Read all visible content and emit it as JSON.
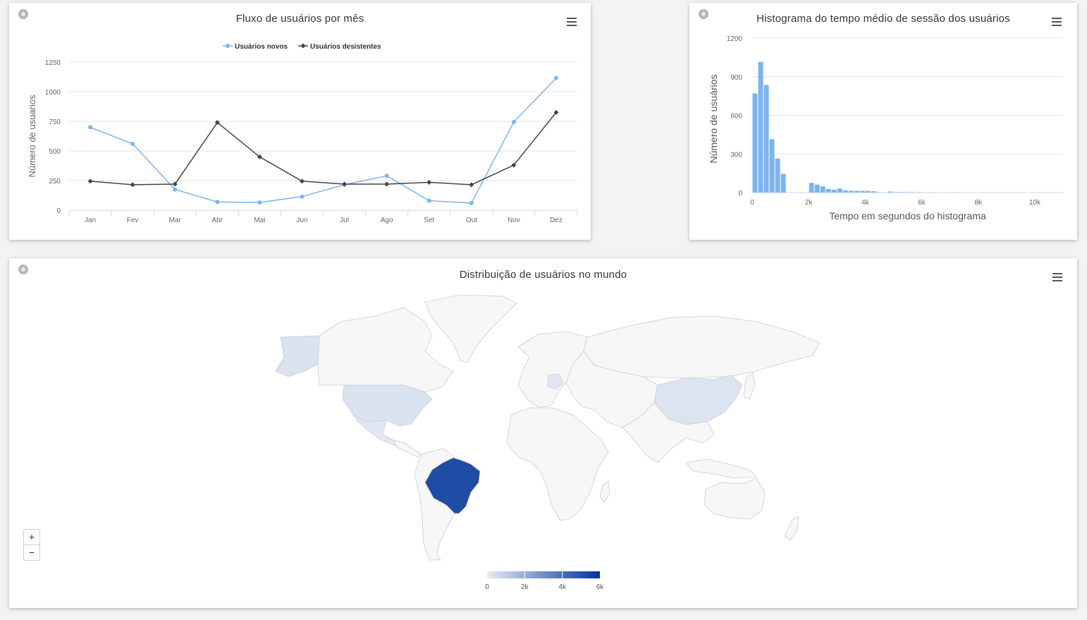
{
  "panels": {
    "line": {
      "title": "Fluxo de usuários por mês"
    },
    "hist": {
      "title": "Histograma do tempo médio de sessão dos usuários"
    },
    "map": {
      "title": "Distribuição de usuários no mundo"
    }
  },
  "colors": {
    "series_new": "#7cb5ec",
    "series_quit": "#434348",
    "hist_bar": "#7cb5ec",
    "map_low": "#e6ebf5",
    "map_high": "#003399",
    "land": "#f7f7f7",
    "land_border": "#cccccc"
  },
  "map_zoom": {
    "in_label": "+",
    "out_label": "−"
  },
  "chart_data": [
    {
      "type": "line",
      "title": "Fluxo de usuários por mês",
      "ylabel": "Número de usuarios",
      "xlabel": "",
      "categories": [
        "Jan",
        "Fev",
        "Mar",
        "Abr",
        "Mai",
        "Jun",
        "Jul",
        "Ago",
        "Set",
        "Out",
        "Nov",
        "Dez"
      ],
      "ylim": [
        0,
        1250
      ],
      "yticks": [
        0,
        250,
        500,
        750,
        1000,
        1250
      ],
      "legend_position": "top-center",
      "grid": true,
      "series": [
        {
          "name": "Usuários novos",
          "values": [
            700,
            560,
            175,
            70,
            65,
            115,
            215,
            290,
            80,
            60,
            745,
            1115
          ]
        },
        {
          "name": "Usuários desistentes",
          "values": [
            245,
            215,
            220,
            740,
            450,
            245,
            220,
            220,
            235,
            215,
            380,
            825
          ]
        }
      ]
    },
    {
      "type": "bar",
      "title": "Histograma do tempo médio de sessão dos usuários",
      "xlabel": "Tempo em segundos do histograma",
      "ylabel": "Número de usuários",
      "xlim": [
        0,
        11000
      ],
      "ylim": [
        0,
        1200
      ],
      "yticks": [
        0,
        300,
        600,
        900,
        1200
      ],
      "xticks": [
        0,
        2000,
        4000,
        6000,
        8000,
        10000
      ],
      "xtick_labels": [
        "0",
        "2k",
        "4k",
        "6k",
        "8k",
        "10k"
      ],
      "grid": true,
      "bin_width": 200,
      "bins_start": 0,
      "values": [
        770,
        1015,
        835,
        415,
        265,
        145,
        0,
        0,
        0,
        0,
        75,
        62,
        48,
        28,
        22,
        32,
        18,
        15,
        14,
        14,
        12,
        10,
        3,
        0,
        8,
        3,
        4,
        3,
        2,
        2,
        0,
        2,
        0,
        0,
        0,
        2,
        0,
        0,
        0,
        0,
        0,
        0,
        0,
        0,
        0,
        0,
        0,
        0,
        0,
        0,
        0,
        0,
        0,
        0,
        0
      ]
    },
    {
      "type": "map",
      "title": "Distribuição de usuários no mundo",
      "colorbar": {
        "min": 0,
        "max": 6000,
        "ticks": [
          0,
          2000,
          4000,
          6000
        ],
        "tick_labels": [
          "0",
          "2k",
          "4k",
          "6k"
        ]
      },
      "regions": [
        {
          "name": "Brazil",
          "value": 5200
        },
        {
          "name": "United States",
          "value": 300
        },
        {
          "name": "Alaska",
          "value": 300
        },
        {
          "name": "China",
          "value": 250
        },
        {
          "name": "Mexico",
          "value": 120
        },
        {
          "name": "Germany",
          "value": 150
        }
      ]
    }
  ]
}
